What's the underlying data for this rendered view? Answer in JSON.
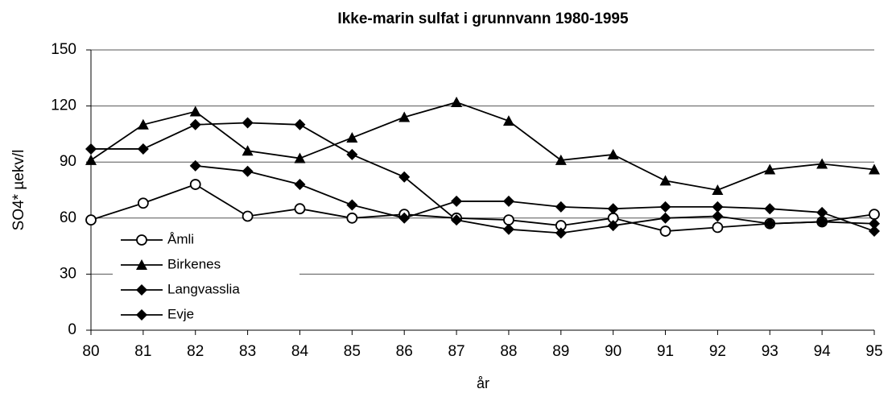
{
  "chart_data": {
    "type": "line",
    "title": "Ikke-marin sulfat i grunnvann 1980-1995",
    "x_label": "år",
    "y_label": "SO4* µekv/l",
    "categories": [
      "80",
      "81",
      "82",
      "83",
      "84",
      "85",
      "86",
      "87",
      "88",
      "89",
      "90",
      "91",
      "92",
      "93",
      "94",
      "95"
    ],
    "ylim": [
      0,
      150
    ],
    "yticks": [
      0,
      30,
      60,
      90,
      120,
      150
    ],
    "grid": true,
    "legend": "lower left",
    "series": [
      {
        "name": "Åmli",
        "color": "#000000",
        "marker": "circle",
        "values": [
          59,
          68,
          78,
          61,
          65,
          60,
          62,
          60,
          59,
          56,
          60,
          53,
          55,
          57,
          58,
          62
        ]
      },
      {
        "name": "Birkenes",
        "color": "#000000",
        "marker": "triangle",
        "values": [
          91,
          110,
          117,
          96,
          92,
          103,
          114,
          122,
          112,
          91,
          94,
          80,
          75,
          86,
          89,
          86
        ]
      },
      {
        "name": "Langvasslia",
        "color": "#000000",
        "marker": "diamond",
        "values": [
          97,
          97,
          110,
          111,
          110,
          94,
          82,
          59,
          54,
          52,
          56,
          60,
          61,
          57,
          58,
          57
        ]
      },
      {
        "name": "Evje",
        "color": "#000000",
        "marker": "diamond",
        "values": [
          null,
          null,
          88,
          85,
          78,
          67,
          60,
          69,
          69,
          66,
          65,
          66,
          66,
          65,
          63,
          53
        ]
      }
    ]
  }
}
